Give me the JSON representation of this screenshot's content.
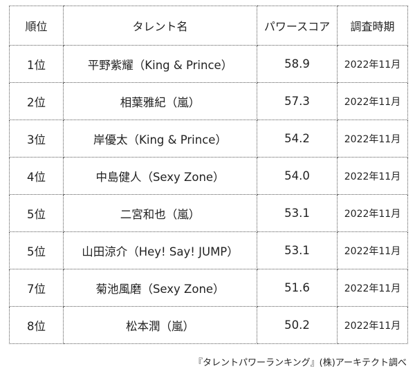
{
  "table": {
    "headers": {
      "rank": "順位",
      "name": "タレント名",
      "score": "パワースコア",
      "period": "調査時期"
    },
    "rows": [
      {
        "rank": "1位",
        "name": "平野紫耀（King & Prince）",
        "score": "58.9",
        "period": "2022年11月"
      },
      {
        "rank": "2位",
        "name": "相葉雅紀（嵐）",
        "score": "57.3",
        "period": "2022年11月"
      },
      {
        "rank": "3位",
        "name": "岸優太（King & Prince）",
        "score": "54.2",
        "period": "2022年11月"
      },
      {
        "rank": "4位",
        "name": "中島健人（Sexy Zone）",
        "score": "54.0",
        "period": "2022年11月"
      },
      {
        "rank": "5位",
        "name": "二宮和也（嵐）",
        "score": "53.1",
        "period": "2022年11月"
      },
      {
        "rank": "5位",
        "name": "山田涼介（Hey! Say! JUMP）",
        "score": "53.1",
        "period": "2022年11月"
      },
      {
        "rank": "7位",
        "name": "菊池風磨（Sexy Zone）",
        "score": "51.6",
        "period": "2022年11月"
      },
      {
        "rank": "8位",
        "name": "松本潤（嵐）",
        "score": "50.2",
        "period": "2022年11月"
      }
    ]
  },
  "caption": "『タレントパワーランキング』(株)アーキテクト調べ"
}
